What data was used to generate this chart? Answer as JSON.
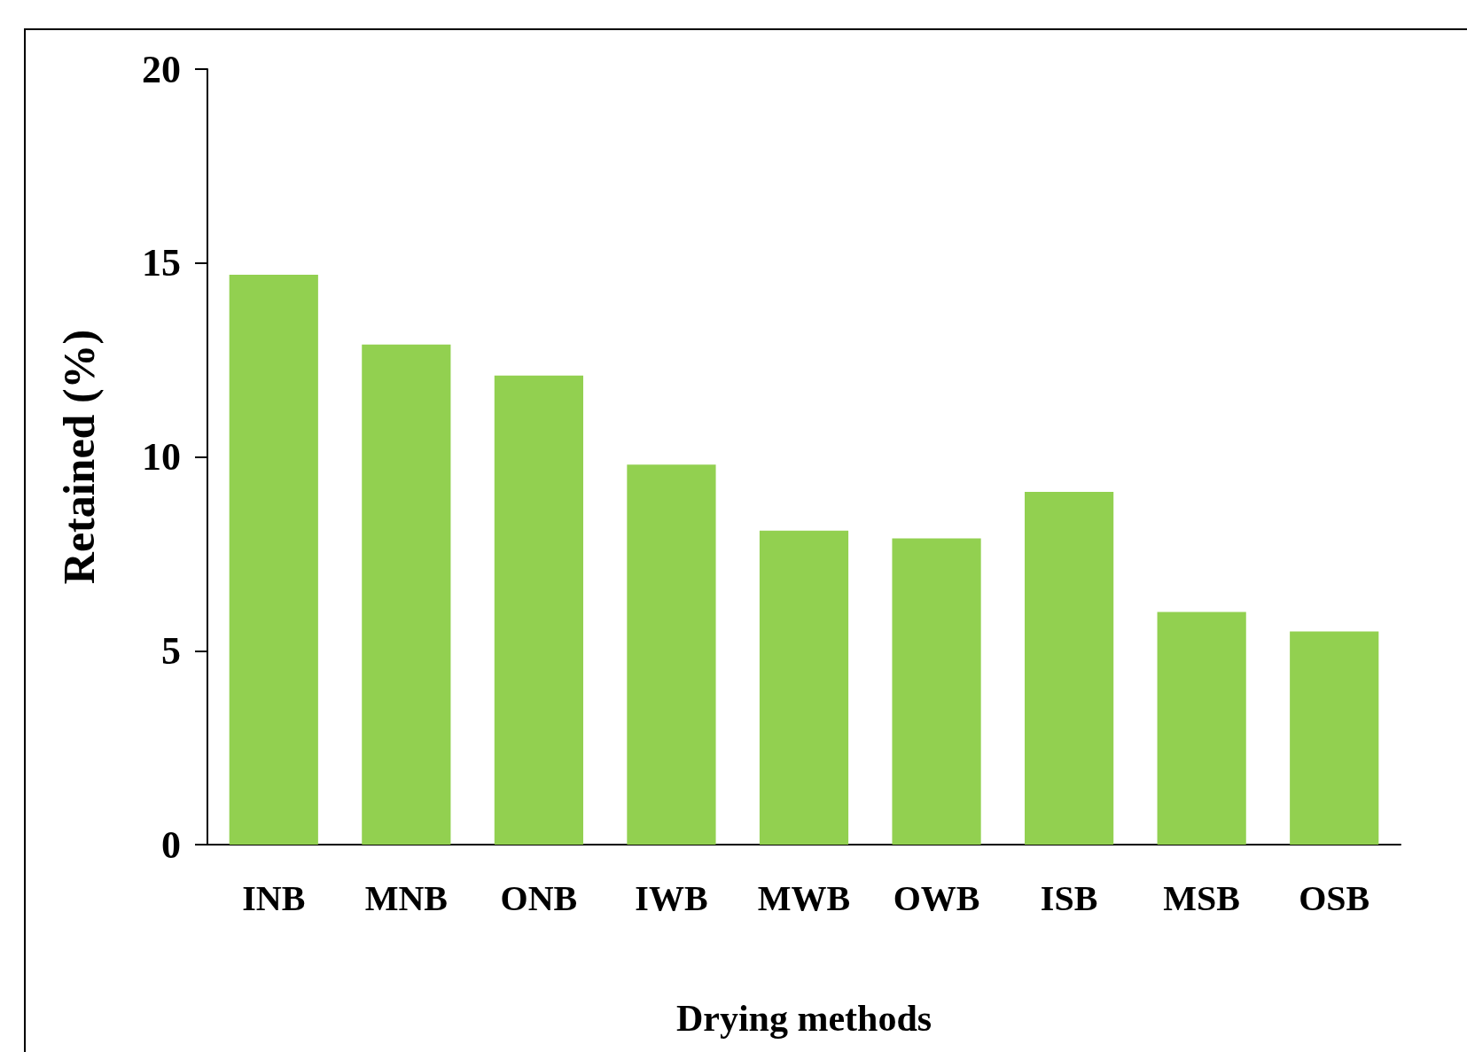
{
  "chart_data": {
    "type": "bar",
    "xlabel": "Drying methods",
    "ylabel": "Retained (%)",
    "categories": [
      "INB",
      "MNB",
      "ONB",
      "IWB",
      "MWB",
      "OWB",
      "ISB",
      "MSB",
      "OSB"
    ],
    "values": [
      14.7,
      12.9,
      12.1,
      9.8,
      8.1,
      7.9,
      9.1,
      6.0,
      5.5
    ],
    "color": "#92d050",
    "ylim": [
      0,
      20
    ],
    "yticks": [
      0,
      5,
      10,
      15,
      20
    ],
    "grid": false
  }
}
